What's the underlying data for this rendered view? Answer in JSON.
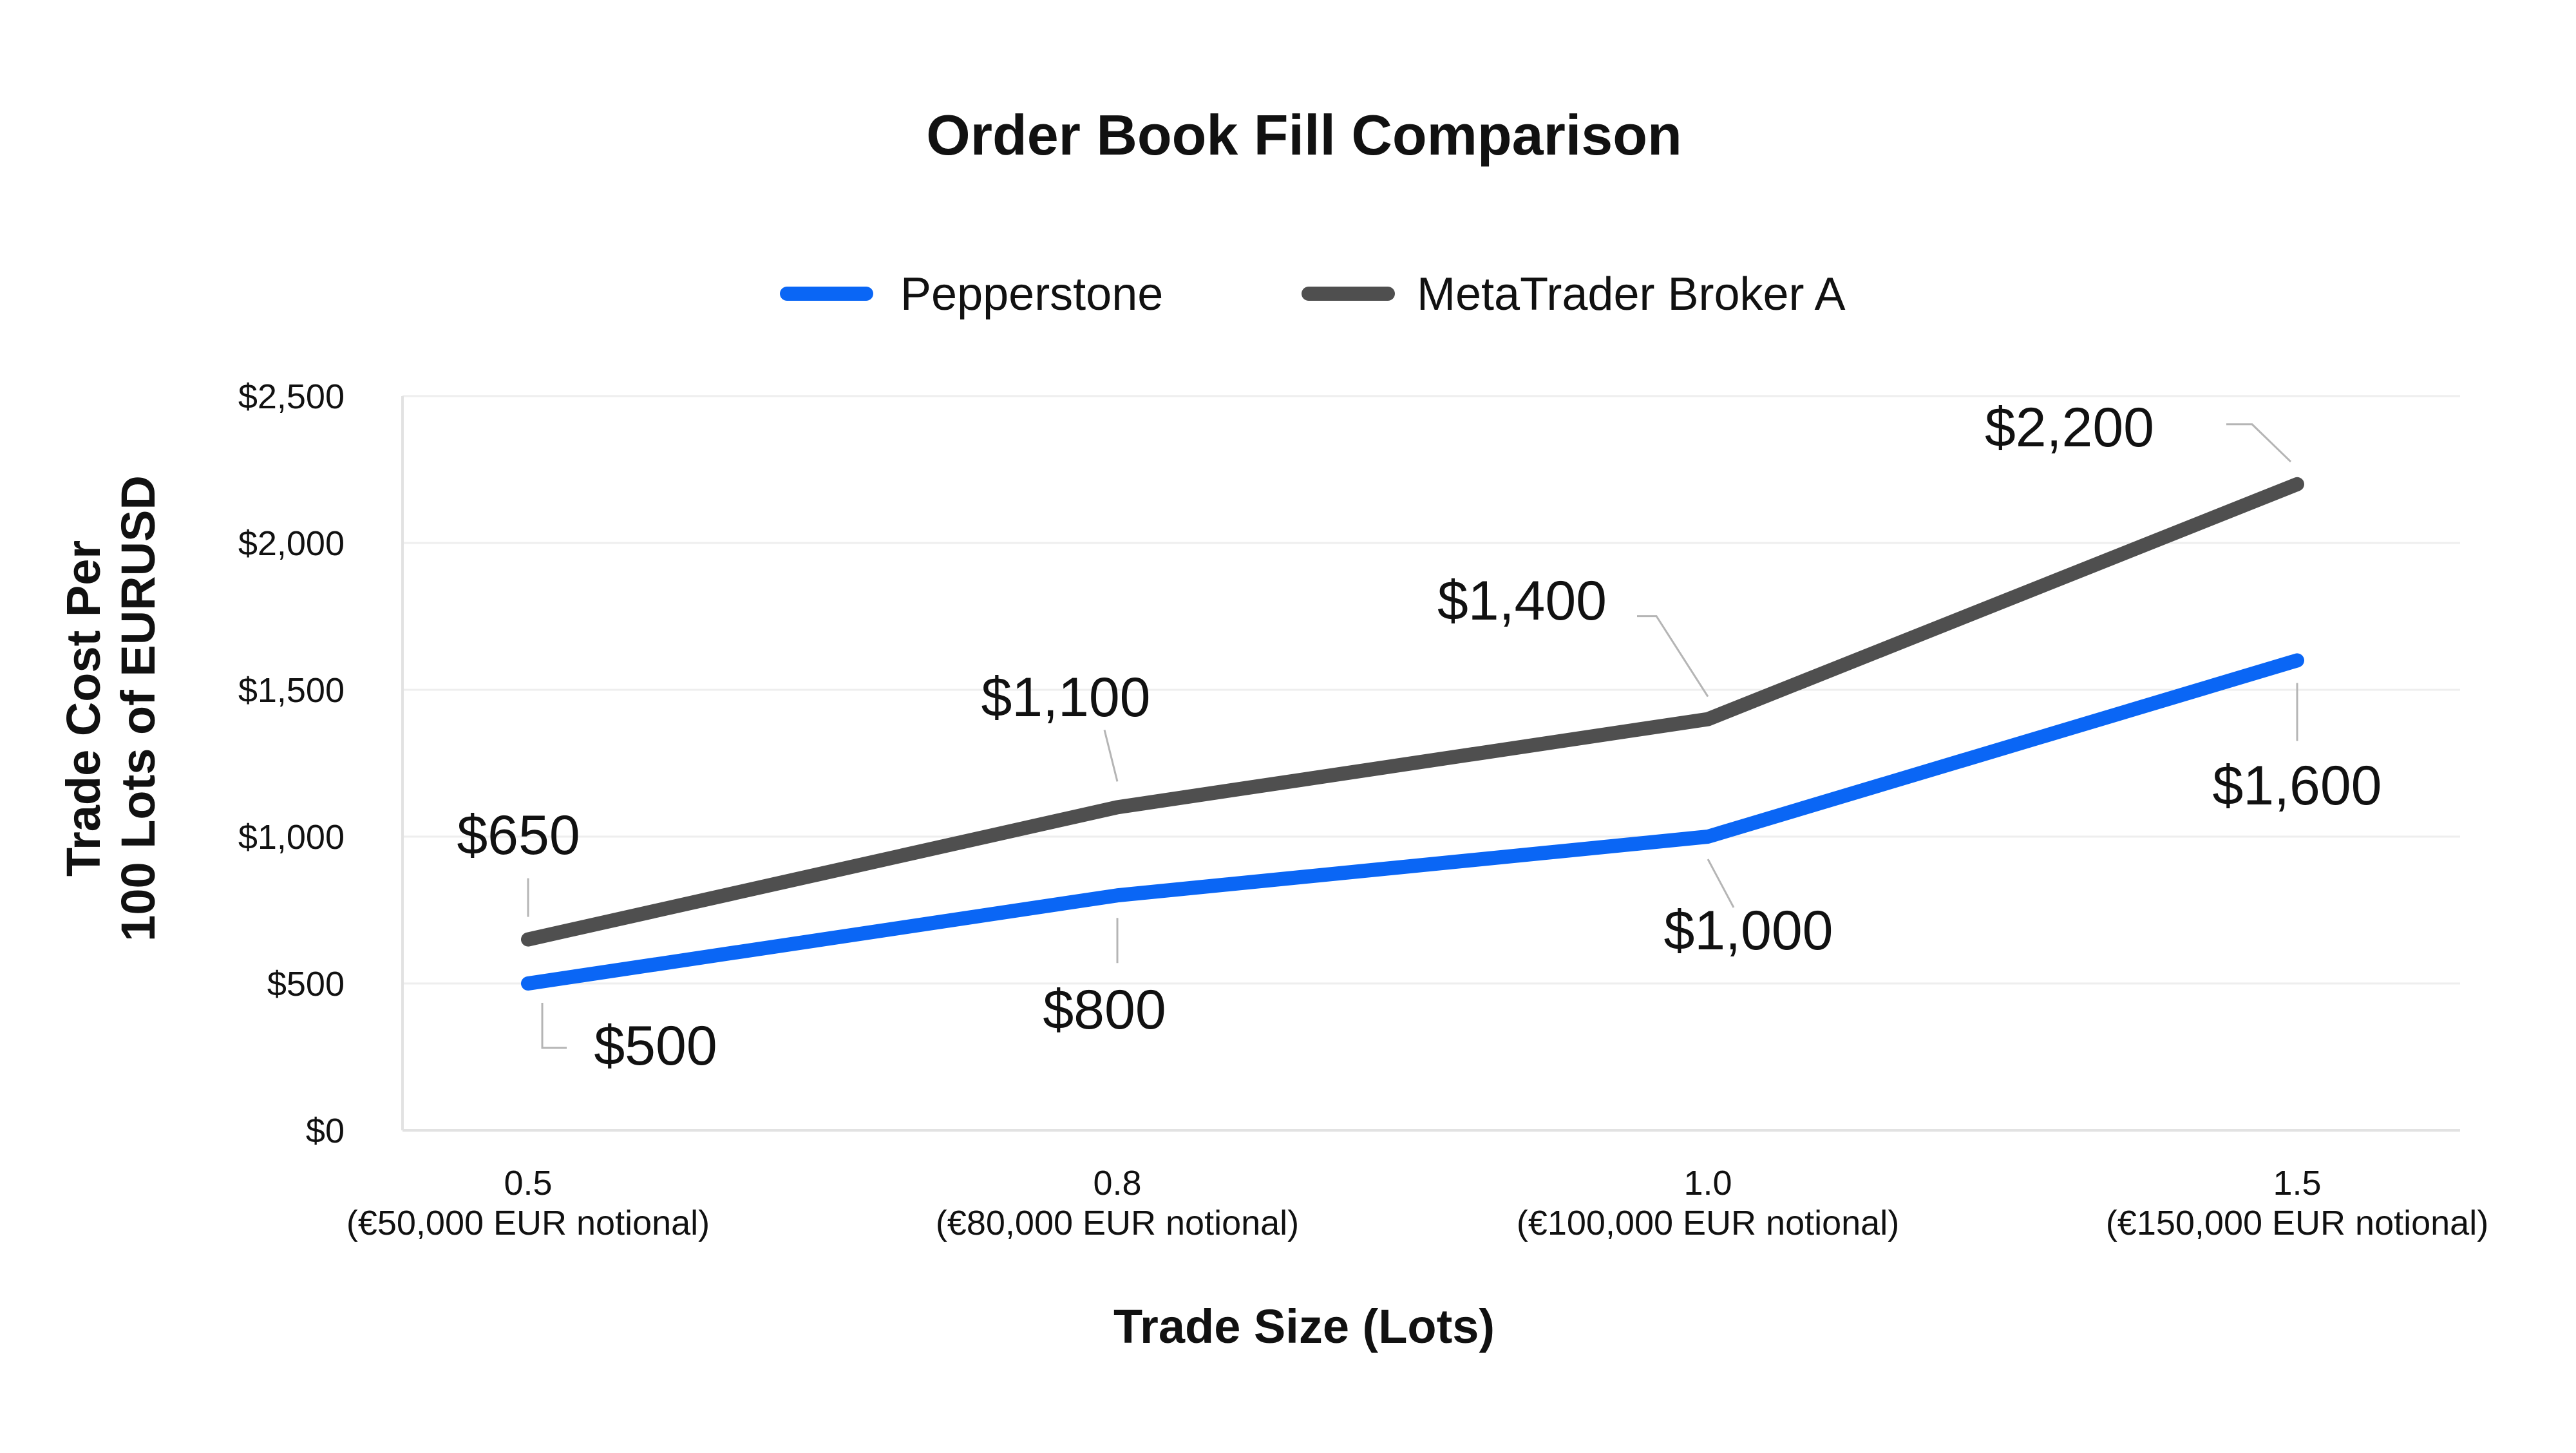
{
  "chart_data": {
    "type": "line",
    "title": "Order Book Fill Comparison",
    "xlabel": "Trade Size (Lots)",
    "ylabel_lines": [
      "Trade Cost Per",
      "100 Lots of EURUSD"
    ],
    "categories": [
      "0.5",
      "0.8",
      "1.0",
      "1.5"
    ],
    "category_sublabels": [
      "(€50,000 EUR notional)",
      "(€80,000 EUR notional)",
      "(€100,000 EUR notional)",
      "(€150,000 EUR notional)"
    ],
    "ylim": [
      0,
      2500
    ],
    "y_ticks": [
      0,
      500,
      1000,
      1500,
      2000,
      2500
    ],
    "y_tick_labels": [
      "$0",
      "$500",
      "$1,000",
      "$1,500",
      "$2,000",
      "$2,500"
    ],
    "grid": true,
    "legend_position": "top-center",
    "series": [
      {
        "name": "Pepperstone",
        "color": "#0a66f5",
        "values": [
          500,
          800,
          1000,
          1600
        ],
        "data_labels": [
          "$500",
          "$800",
          "$1,000",
          "$1,600"
        ]
      },
      {
        "name": "MetaTrader Broker A",
        "color": "#4f4f4f",
        "values": [
          650,
          1100,
          1400,
          2200
        ],
        "data_labels": [
          "$650",
          "$1,100",
          "$1,400",
          "$2,200"
        ]
      }
    ]
  }
}
